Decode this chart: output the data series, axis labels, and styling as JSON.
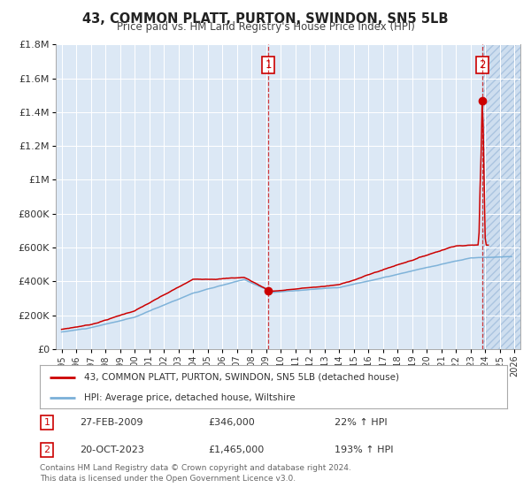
{
  "title": "43, COMMON PLATT, PURTON, SWINDON, SN5 5LB",
  "subtitle": "Price paid vs. HM Land Registry's House Price Index (HPI)",
  "background_color": "#f0f0f0",
  "plot_bg_color": "#dce8f5",
  "hpi_color": "#7ab0d8",
  "price_color": "#cc0000",
  "ylim": [
    0,
    1800000
  ],
  "yticks": [
    0,
    200000,
    400000,
    600000,
    800000,
    1000000,
    1200000,
    1400000,
    1600000,
    1800000
  ],
  "ytick_labels": [
    "£0",
    "£200K",
    "£400K",
    "£600K",
    "£800K",
    "£1M",
    "£1.2M",
    "£1.4M",
    "£1.6M",
    "£1.8M"
  ],
  "xmin": 1994.6,
  "xmax": 2026.4,
  "sale1_x": 2009.15,
  "sale1_y": 346000,
  "sale2_x": 2023.8,
  "sale2_y": 1465000,
  "annotation1_date": "27-FEB-2009",
  "annotation1_price": "£346,000",
  "annotation1_hpi": "22% ↑ HPI",
  "annotation2_date": "20-OCT-2023",
  "annotation2_price": "£1,465,000",
  "annotation2_hpi": "193% ↑ HPI",
  "legend_line1": "43, COMMON PLATT, PURTON, SWINDON, SN5 5LB (detached house)",
  "legend_line2": "HPI: Average price, detached house, Wiltshire",
  "footnote": "Contains HM Land Registry data © Crown copyright and database right 2024.\nThis data is licensed under the Open Government Licence v3.0."
}
